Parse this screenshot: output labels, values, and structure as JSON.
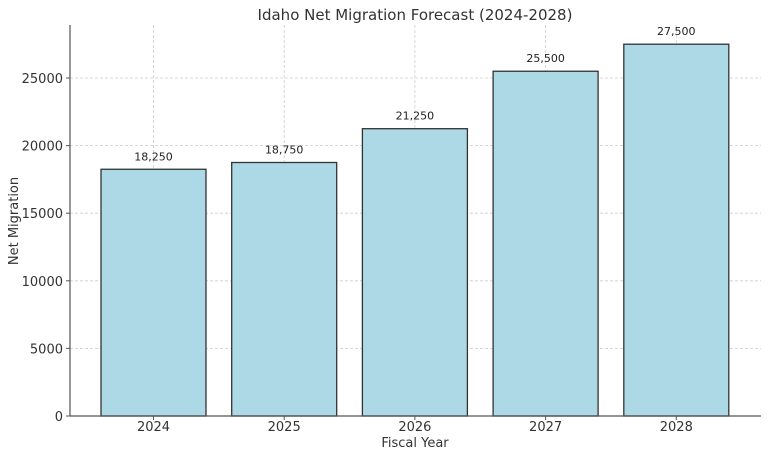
{
  "chart_data": {
    "type": "bar",
    "title": "Idaho Net Migration Forecast (2024-2028)",
    "xlabel": "Fiscal Year",
    "ylabel": "Net Migration",
    "categories": [
      "2024",
      "2025",
      "2026",
      "2027",
      "2028"
    ],
    "values": [
      18250,
      18750,
      21250,
      25500,
      27500
    ],
    "data_labels": [
      "18,250",
      "18,750",
      "21,250",
      "25,500",
      "27,500"
    ],
    "yticks": [
      0,
      5000,
      10000,
      15000,
      20000,
      25000
    ],
    "ytick_labels": [
      "0",
      "5000",
      "10000",
      "15000",
      "20000",
      "25000"
    ],
    "ylim": [
      0,
      28875
    ],
    "grid": true,
    "legend": null,
    "bar_color": "#add8e6",
    "bar_edge_color": "#333333"
  }
}
